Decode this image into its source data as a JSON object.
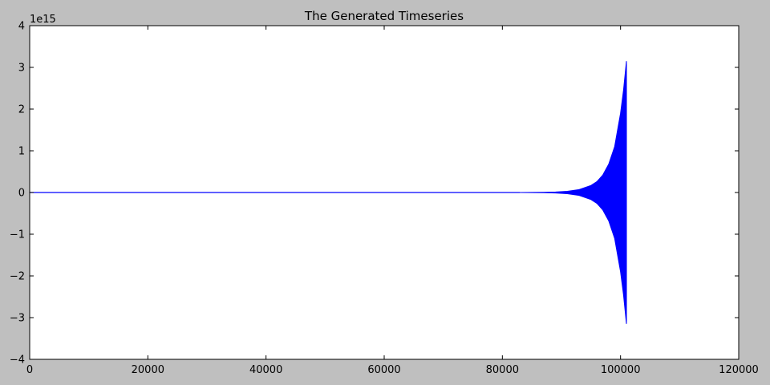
{
  "chart_data": {
    "type": "line",
    "title": "The Generated Timeseries",
    "xlabel": "",
    "ylabel": "",
    "y_offset_label": "1e15",
    "xlim": [
      0,
      120000
    ],
    "ylim": [
      -4,
      4
    ],
    "y_units_scale": 1000000000000000.0,
    "x_ticks": [
      0,
      20000,
      40000,
      60000,
      80000,
      100000,
      120000
    ],
    "x_tick_labels": [
      "0",
      "20000",
      "40000",
      "60000",
      "80000",
      "100000",
      "120000"
    ],
    "y_ticks": [
      4,
      3,
      2,
      1,
      0,
      -1,
      -2,
      -3,
      -4
    ],
    "y_tick_labels": [
      "4",
      "3",
      "2",
      "1",
      "0",
      "−1",
      "−2",
      "−3",
      "−4"
    ],
    "grid": false,
    "legend": "none",
    "series": [
      {
        "color": "#0000ff",
        "description_kind": "oscillating signal, near zero then exponentially growing envelope",
        "flat_until_x": 83000,
        "end_x": 101000,
        "envelope": [
          {
            "x": 0,
            "y": 0.0
          },
          {
            "x": 83000,
            "y": 0.0
          },
          {
            "x": 85000,
            "y": 0.002
          },
          {
            "x": 87000,
            "y": 0.005
          },
          {
            "x": 89000,
            "y": 0.012
          },
          {
            "x": 91000,
            "y": 0.03
          },
          {
            "x": 93000,
            "y": 0.07
          },
          {
            "x": 95000,
            "y": 0.17
          },
          {
            "x": 96000,
            "y": 0.26
          },
          {
            "x": 97000,
            "y": 0.42
          },
          {
            "x": 98000,
            "y": 0.68
          },
          {
            "x": 99000,
            "y": 1.1
          },
          {
            "x": 100000,
            "y": 1.9
          },
          {
            "x": 100500,
            "y": 2.45
          },
          {
            "x": 101000,
            "y": 3.15
          }
        ]
      }
    ]
  },
  "colors": {
    "figure_bg": "#bfbfbf",
    "axes_bg": "#ffffff",
    "axes_edge": "#000000",
    "line": "#0000ff"
  }
}
